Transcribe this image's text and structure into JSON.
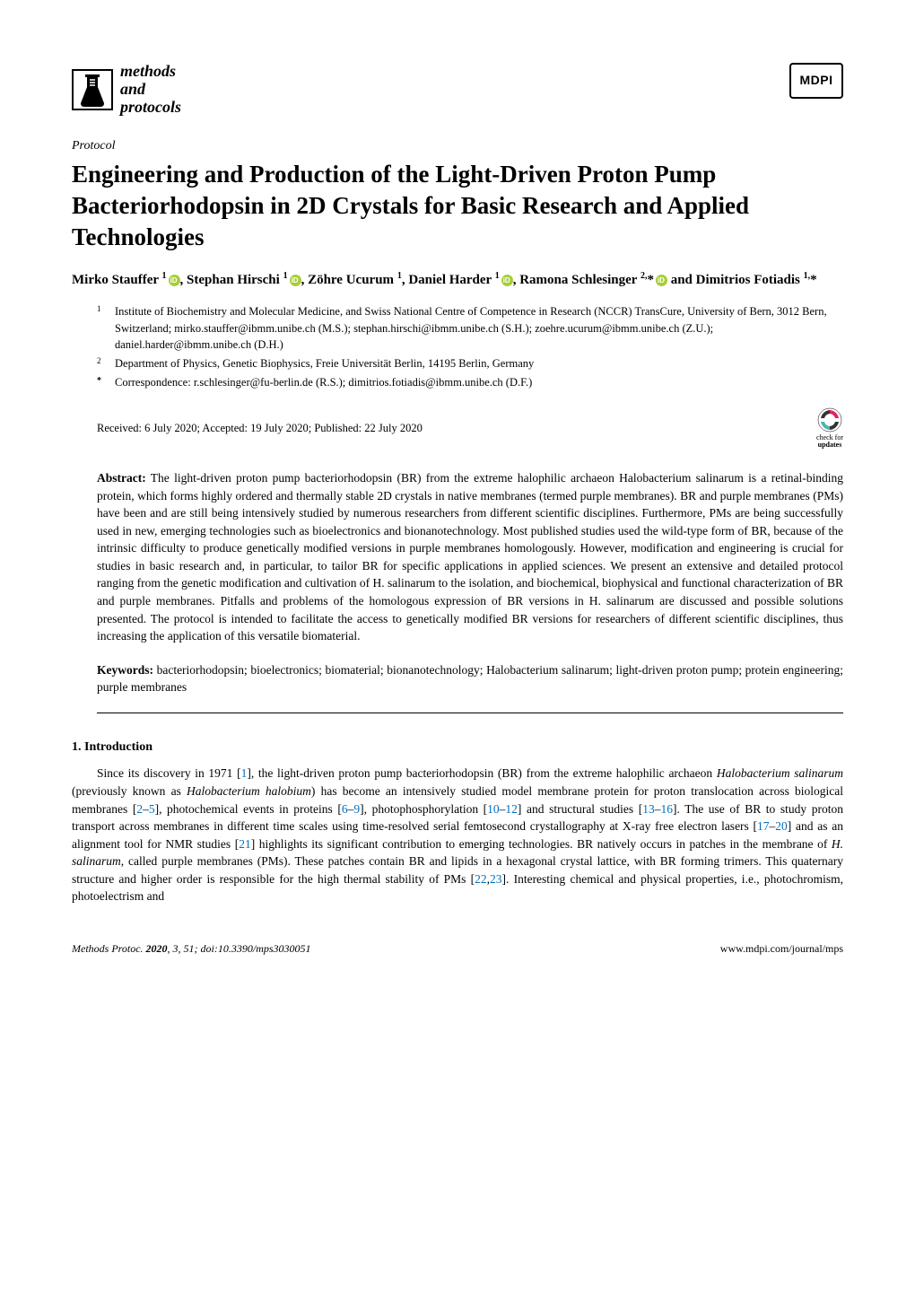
{
  "journal": {
    "name_line1": "methods",
    "name_line2": "and",
    "name_line3": "protocols",
    "publisher": "MDPI"
  },
  "article_type": "Protocol",
  "title": "Engineering and Production of the Light-Driven Proton Pump Bacteriorhodopsin in 2D Crystals for Basic Research and Applied Technologies",
  "authors_html": "Mirko Stauffer <sup>1</sup><span class='orcid' data-name='orcid-icon' data-interactable='false'></span>, Stephan Hirschi <sup>1</sup><span class='orcid' data-name='orcid-icon' data-interactable='false'></span>, Zöhre Ucurum <sup>1</sup>, Daniel Harder <sup>1</sup><span class='orcid' data-name='orcid-icon' data-interactable='false'></span>, Ramona Schlesinger <sup>2,</sup>*<span class='orcid' data-name='orcid-icon' data-interactable='false'></span> and Dimitrios Fotiadis <sup>1,</sup>*",
  "affiliations": [
    {
      "num": "1",
      "text": "Institute of Biochemistry and Molecular Medicine, and Swiss National Centre of Competence in Research (NCCR) TransCure, University of Bern, 3012 Bern, Switzerland; mirko.stauffer@ibmm.unibe.ch (M.S.); stephan.hirschi@ibmm.unibe.ch (S.H.); zoehre.ucurum@ibmm.unibe.ch (Z.U.); daniel.harder@ibmm.unibe.ch (D.H.)"
    },
    {
      "num": "2",
      "text": "Department of Physics, Genetic Biophysics, Freie Universität Berlin, 14195 Berlin, Germany"
    },
    {
      "num": "*",
      "text": "Correspondence: r.schlesinger@fu-berlin.de (R.S.); dimitrios.fotiadis@ibmm.unibe.ch (D.F.)"
    }
  ],
  "dates": "Received: 6 July 2020; Accepted: 19 July 2020; Published: 22 July 2020",
  "check_updates": {
    "line1": "check for",
    "line2": "updates"
  },
  "abstract_label": "Abstract:",
  "abstract_text": " The light-driven proton pump bacteriorhodopsin (BR) from the extreme halophilic archaeon Halobacterium salinarum is a retinal-binding protein, which forms highly ordered and thermally stable 2D crystals in native membranes (termed purple membranes). BR and purple membranes (PMs) have been and are still being intensively studied by numerous researchers from different scientific disciplines. Furthermore, PMs are being successfully used in new, emerging technologies such as bioelectronics and bionanotechnology. Most published studies used the wild-type form of BR, because of the intrinsic difficulty to produce genetically modified versions in purple membranes homologously. However, modification and engineering is crucial for studies in basic research and, in particular, to tailor BR for specific applications in applied sciences. We present an extensive and detailed protocol ranging from the genetic modification and cultivation of H. salinarum to the isolation, and biochemical, biophysical and functional characterization of BR and purple membranes. Pitfalls and problems of the homologous expression of BR versions in H. salinarum are discussed and possible solutions presented. The protocol is intended to facilitate the access to genetically modified BR versions for researchers of different scientific disciplines, thus increasing the application of this versatile biomaterial.",
  "keywords_label": "Keywords:",
  "keywords_text": " bacteriorhodopsin; bioelectronics; biomaterial; bionanotechnology; Halobacterium salinarum; light-driven proton pump; protein engineering; purple membranes",
  "section1_heading": "1. Introduction",
  "body_para1_html": "Since its discovery in 1971 [<span class='ref'>1</span>], the light-driven proton pump bacteriorhodopsin (BR) from the extreme halophilic archaeon <span class='ital'>Halobacterium salinarum</span> (previously known as <span class='ital'>Halobacterium halobium</span>) has become an intensively studied model membrane protein for proton translocation across biological membranes [<span class='ref'>2</span>–<span class='ref'>5</span>], photochemical events in proteins [<span class='ref'>6</span>–<span class='ref'>9</span>], photophosphorylation [<span class='ref'>10</span>–<span class='ref'>12</span>] and structural studies [<span class='ref'>13</span>–<span class='ref'>16</span>]. The use of BR to study proton transport across membranes in different time scales using time-resolved serial femtosecond crystallography at X-ray free electron lasers [<span class='ref'>17</span>–<span class='ref'>20</span>] and as an alignment tool for NMR studies [<span class='ref'>21</span>] highlights its significant contribution to emerging technologies. BR natively occurs in patches in the membrane of <span class='ital'>H. salinarum</span>, called purple membranes (PMs). These patches contain BR and lipids in a hexagonal crystal lattice, with BR forming trimers. This quaternary structure and higher order is responsible for the high thermal stability of PMs [<span class='ref'>22</span>,<span class='ref'>23</span>]. Interesting chemical and physical properties, i.e., photochromism, photoelectrism and",
  "footer": {
    "left_html": "<span class='ital'>Methods Protoc.</span> <span class='bold'>2020</span>, <span class='ital'>3</span>, 51; doi:10.3390/mps3030051",
    "right": "www.mdpi.com/journal/mps"
  },
  "colors": {
    "text": "#000000",
    "background": "#ffffff",
    "ref_link": "#0070c0",
    "orcid": "#a6ce39",
    "updates_pink": "#e91e63",
    "updates_teal": "#4db6ac"
  }
}
